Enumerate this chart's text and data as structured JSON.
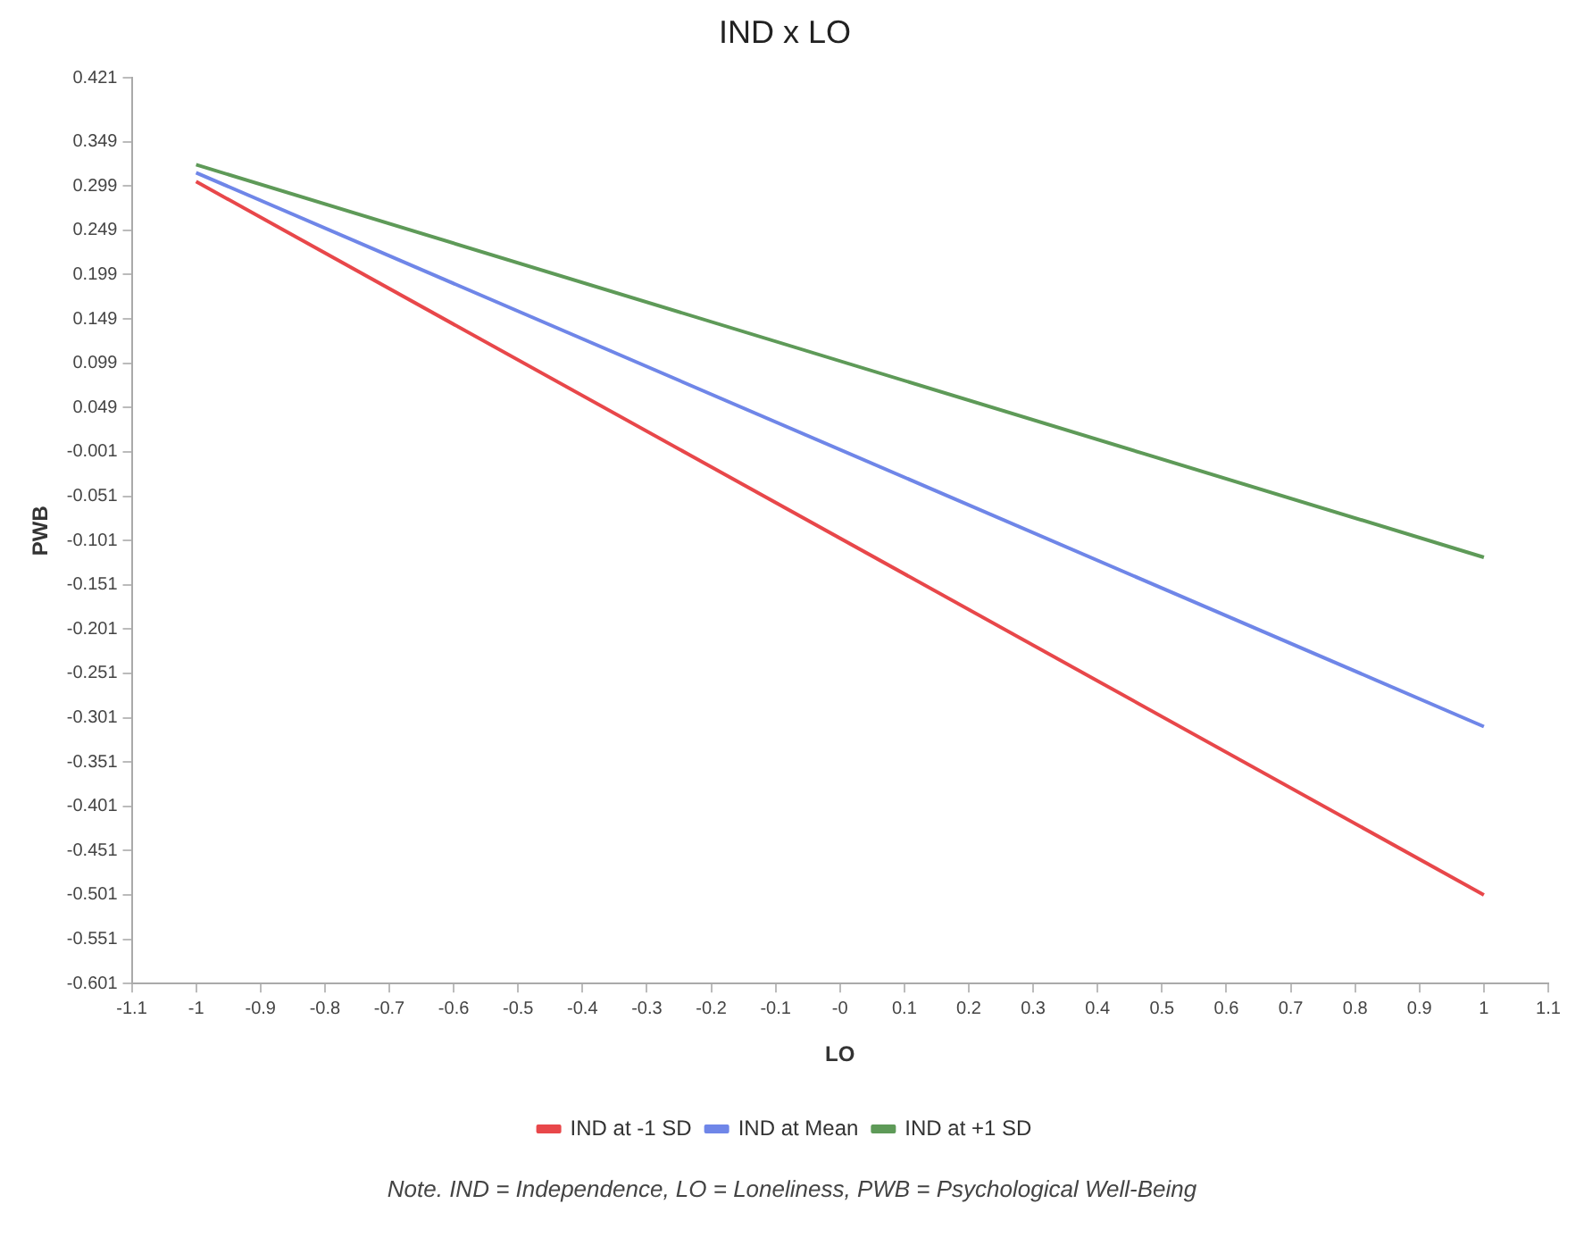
{
  "chart_data": {
    "type": "line",
    "title": "IND x LO",
    "xlabel": "LO",
    "ylabel": "PWB",
    "x": [
      -1,
      1
    ],
    "series": [
      {
        "name": "IND at -1 SD",
        "color": "#e8474a",
        "values": [
          0.304,
          -0.501
        ]
      },
      {
        "name": "IND at Mean",
        "color": "#6f86e8",
        "values": [
          0.314,
          -0.311
        ]
      },
      {
        "name": "IND at +1 SD",
        "color": "#5e9a58",
        "values": [
          0.323,
          -0.12
        ]
      }
    ],
    "xlim": [
      -1.1,
      1.1
    ],
    "xticks": [
      -1.1,
      -1,
      -0.9,
      -0.8,
      -0.7,
      -0.6,
      -0.5,
      -0.4,
      -0.3,
      -0.2,
      -0.1,
      {
        "value": 0,
        "label": "-0"
      },
      0.1,
      0.2,
      0.3,
      0.4,
      0.5,
      0.6,
      0.7,
      0.8,
      0.9,
      1,
      1.1
    ],
    "ylim": [
      -0.601,
      0.421
    ],
    "yticks": [
      -0.601,
      -0.551,
      -0.501,
      -0.451,
      -0.401,
      -0.351,
      -0.301,
      -0.251,
      -0.201,
      -0.151,
      -0.101,
      -0.051,
      -0.001,
      0.049,
      0.099,
      0.149,
      0.199,
      0.249,
      0.299,
      0.349,
      0.421
    ],
    "grid": false,
    "legend": "bottom",
    "marker": "none",
    "line_style": "solid",
    "annotations": [
      "Note. IND = Independence, LO = Loneliness, PWB = Psychological Well-Being"
    ]
  }
}
